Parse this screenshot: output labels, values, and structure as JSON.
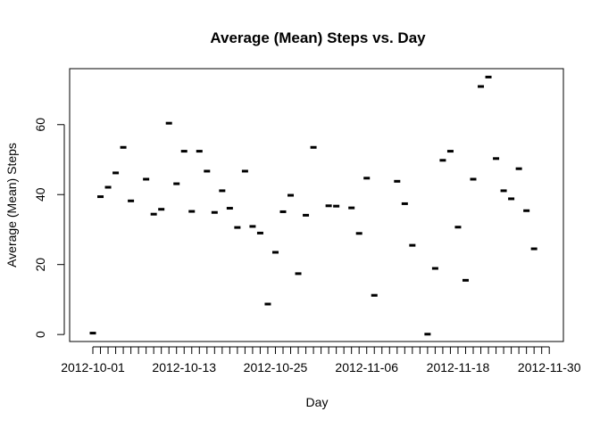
{
  "chart_data": {
    "type": "scatter",
    "title": "Average (Mean) Steps vs. Day",
    "xlabel": "Day",
    "ylabel": "Average (Mean) Steps",
    "x_tick_labels": [
      "2012-10-01",
      "2012-10-13",
      "2012-10-25",
      "2012-11-06",
      "2012-11-18",
      "2012-11-30"
    ],
    "y_ticks": [
      0,
      20,
      40,
      60
    ],
    "ylim": [
      -2,
      76
    ],
    "grid": false,
    "legend": "none",
    "x": [
      "2012-10-01",
      "2012-10-02",
      "2012-10-03",
      "2012-10-04",
      "2012-10-05",
      "2012-10-06",
      "2012-10-07",
      "2012-10-08",
      "2012-10-09",
      "2012-10-10",
      "2012-10-11",
      "2012-10-12",
      "2012-10-13",
      "2012-10-14",
      "2012-10-15",
      "2012-10-16",
      "2012-10-17",
      "2012-10-18",
      "2012-10-19",
      "2012-10-20",
      "2012-10-21",
      "2012-10-22",
      "2012-10-23",
      "2012-10-24",
      "2012-10-25",
      "2012-10-26",
      "2012-10-27",
      "2012-10-28",
      "2012-10-29",
      "2012-10-30",
      "2012-10-31",
      "2012-11-01",
      "2012-11-02",
      "2012-11-03",
      "2012-11-04",
      "2012-11-05",
      "2012-11-06",
      "2012-11-07",
      "2012-11-08",
      "2012-11-09",
      "2012-11-10",
      "2012-11-11",
      "2012-11-12",
      "2012-11-13",
      "2012-11-14",
      "2012-11-15",
      "2012-11-16",
      "2012-11-17",
      "2012-11-18",
      "2012-11-19",
      "2012-11-20",
      "2012-11-21",
      "2012-11-22",
      "2012-11-23",
      "2012-11-24",
      "2012-11-25",
      "2012-11-26",
      "2012-11-27",
      "2012-11-28",
      "2012-11-29",
      "2012-11-30"
    ],
    "y": [
      0.4,
      39.4,
      42.1,
      46.2,
      53.5,
      38.2,
      null,
      44.4,
      34.4,
      35.8,
      60.4,
      43.1,
      52.4,
      35.2,
      52.4,
      46.7,
      34.9,
      41.1,
      36.1,
      30.6,
      46.7,
      30.9,
      29.0,
      8.7,
      23.5,
      35.1,
      39.8,
      17.4,
      34.1,
      53.5,
      null,
      36.8,
      36.7,
      null,
      36.2,
      28.9,
      44.7,
      11.2,
      null,
      null,
      43.8,
      37.4,
      25.5,
      null,
      0.1,
      18.9,
      49.8,
      52.4,
      30.7,
      15.5,
      44.4,
      70.9,
      73.6,
      50.3,
      41.1,
      38.8,
      47.4,
      35.4,
      24.5,
      null,
      null
    ],
    "color": "#000000"
  }
}
